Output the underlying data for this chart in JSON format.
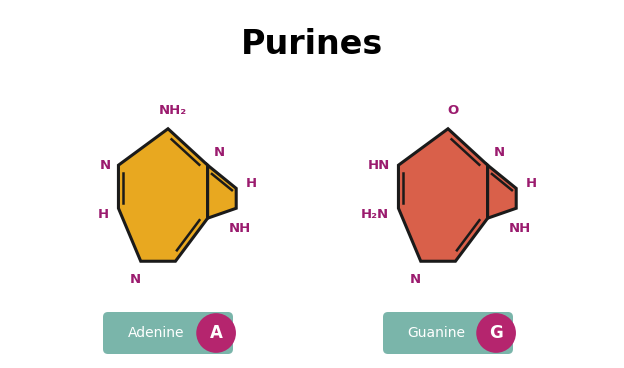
{
  "title": "Purines",
  "title_fontsize": 24,
  "title_fontweight": "bold",
  "bg_color": "#ffffff",
  "label_color": "#9b1b6e",
  "adenine_color": "#E8A820",
  "guanine_color": "#D9604A",
  "edge_color": "#1a1a1a",
  "badge_bg": "#7ab5aa",
  "badge_letter_bg": "#b5256e",
  "badge_text_color": "#ffffff",
  "adenine_label": "Adenine",
  "adenine_letter": "A",
  "guanine_label": "Guanine",
  "guanine_letter": "G"
}
